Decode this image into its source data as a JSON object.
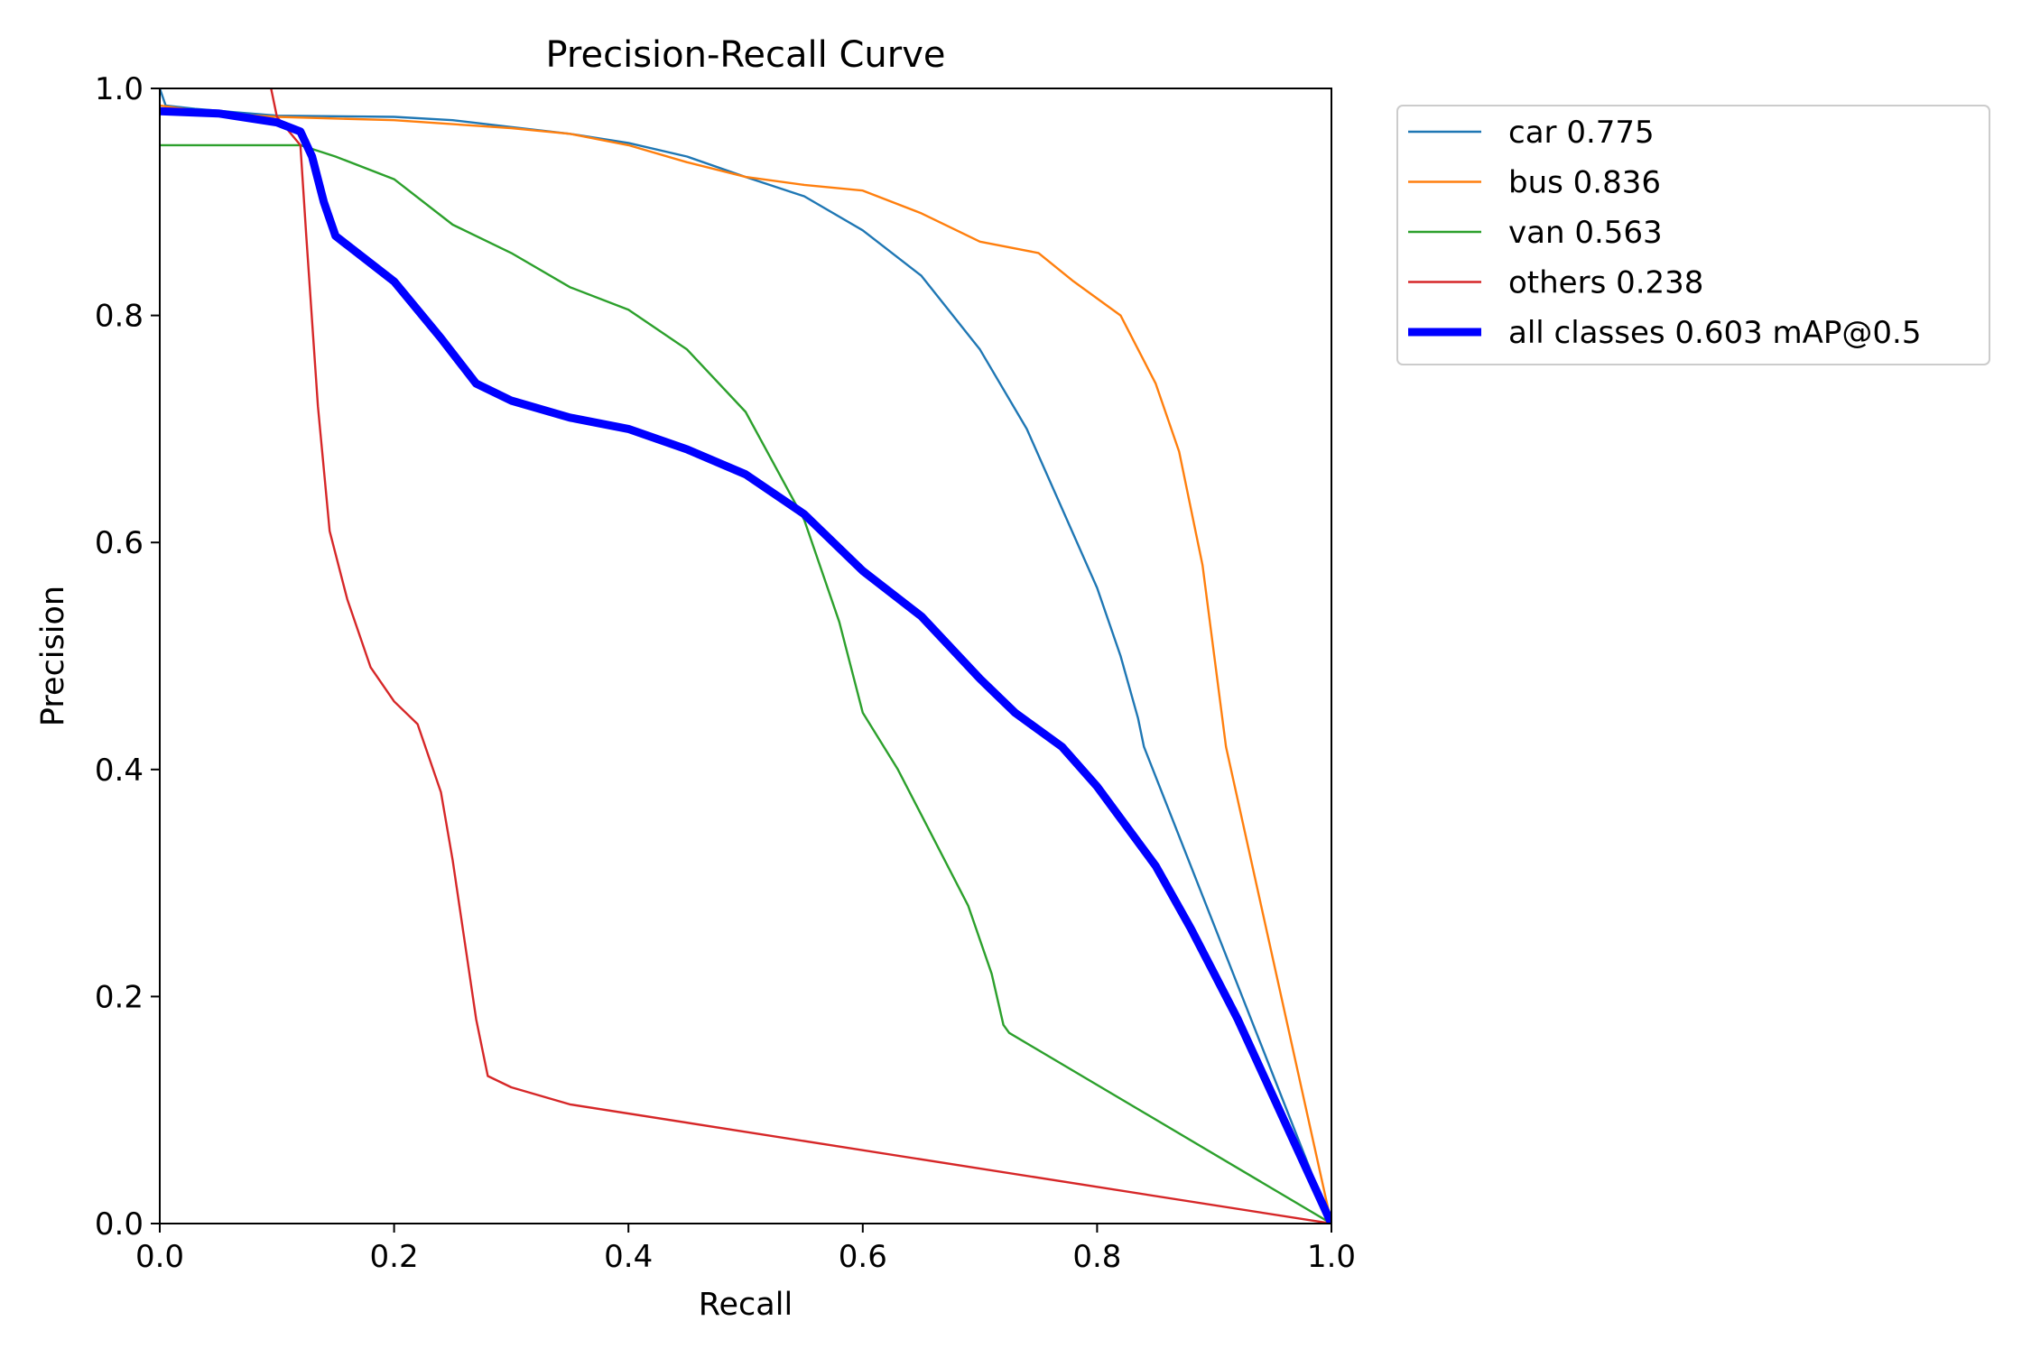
{
  "chart_data": {
    "type": "line",
    "title": "Precision-Recall Curve",
    "xlabel": "Recall",
    "ylabel": "Precision",
    "xlim": [
      0,
      1
    ],
    "ylim": [
      0,
      1
    ],
    "grid": false,
    "legend_position": "outside-top-right",
    "x_ticks": [
      "0.0",
      "0.2",
      "0.4",
      "0.6",
      "0.8",
      "1.0"
    ],
    "y_ticks": [
      "0.0",
      "0.2",
      "0.4",
      "0.6",
      "0.8",
      "1.0"
    ],
    "series": [
      {
        "name": "car",
        "label": "car 0.775",
        "ap": 0.775,
        "color": "#1f77b4",
        "width": "thin",
        "points": [
          [
            0,
            1.0
          ],
          [
            0.005,
            0.985
          ],
          [
            0.03,
            0.982
          ],
          [
            0.1,
            0.976
          ],
          [
            0.2,
            0.975
          ],
          [
            0.25,
            0.972
          ],
          [
            0.3,
            0.966
          ],
          [
            0.35,
            0.96
          ],
          [
            0.4,
            0.952
          ],
          [
            0.45,
            0.94
          ],
          [
            0.5,
            0.922
          ],
          [
            0.55,
            0.905
          ],
          [
            0.6,
            0.875
          ],
          [
            0.65,
            0.835
          ],
          [
            0.7,
            0.77
          ],
          [
            0.74,
            0.7
          ],
          [
            0.77,
            0.63
          ],
          [
            0.8,
            0.56
          ],
          [
            0.82,
            0.5
          ],
          [
            0.835,
            0.445
          ],
          [
            0.84,
            0.42
          ],
          [
            1.0,
            0.0
          ]
        ]
      },
      {
        "name": "bus",
        "label": "bus 0.836",
        "ap": 0.836,
        "color": "#ff7f0e",
        "width": "thin",
        "points": [
          [
            0,
            0.985
          ],
          [
            0.02,
            0.982
          ],
          [
            0.05,
            0.978
          ],
          [
            0.1,
            0.975
          ],
          [
            0.2,
            0.972
          ],
          [
            0.3,
            0.965
          ],
          [
            0.35,
            0.96
          ],
          [
            0.4,
            0.95
          ],
          [
            0.45,
            0.935
          ],
          [
            0.5,
            0.922
          ],
          [
            0.55,
            0.915
          ],
          [
            0.6,
            0.91
          ],
          [
            0.65,
            0.89
          ],
          [
            0.7,
            0.865
          ],
          [
            0.75,
            0.855
          ],
          [
            0.78,
            0.83
          ],
          [
            0.82,
            0.8
          ],
          [
            0.85,
            0.74
          ],
          [
            0.87,
            0.68
          ],
          [
            0.89,
            0.58
          ],
          [
            0.9,
            0.5
          ],
          [
            0.91,
            0.42
          ],
          [
            1.0,
            0.0
          ]
        ]
      },
      {
        "name": "van",
        "label": "van 0.563",
        "ap": 0.563,
        "color": "#2ca02c",
        "width": "thin",
        "points": [
          [
            0,
            0.95
          ],
          [
            0.12,
            0.95
          ],
          [
            0.15,
            0.94
          ],
          [
            0.2,
            0.92
          ],
          [
            0.25,
            0.88
          ],
          [
            0.3,
            0.855
          ],
          [
            0.35,
            0.825
          ],
          [
            0.4,
            0.805
          ],
          [
            0.45,
            0.77
          ],
          [
            0.5,
            0.715
          ],
          [
            0.55,
            0.62
          ],
          [
            0.58,
            0.53
          ],
          [
            0.6,
            0.45
          ],
          [
            0.63,
            0.4
          ],
          [
            0.66,
            0.34
          ],
          [
            0.69,
            0.28
          ],
          [
            0.71,
            0.22
          ],
          [
            0.72,
            0.175
          ],
          [
            0.725,
            0.168
          ],
          [
            1.0,
            0.0
          ]
        ]
      },
      {
        "name": "others",
        "label": "others 0.238",
        "ap": 0.238,
        "color": "#d62728",
        "width": "thin",
        "points": [
          [
            0.095,
            1.0
          ],
          [
            0.1,
            0.975
          ],
          [
            0.12,
            0.95
          ],
          [
            0.125,
            0.87
          ],
          [
            0.135,
            0.72
          ],
          [
            0.145,
            0.61
          ],
          [
            0.16,
            0.55
          ],
          [
            0.18,
            0.49
          ],
          [
            0.2,
            0.46
          ],
          [
            0.22,
            0.44
          ],
          [
            0.24,
            0.38
          ],
          [
            0.25,
            0.32
          ],
          [
            0.26,
            0.25
          ],
          [
            0.27,
            0.18
          ],
          [
            0.28,
            0.13
          ],
          [
            0.3,
            0.12
          ],
          [
            0.35,
            0.105
          ],
          [
            1.0,
            0.0
          ]
        ]
      },
      {
        "name": "all classes",
        "label": "all classes 0.603 mAP@0.5",
        "ap": 0.603,
        "color": "#0000ff",
        "width": "thick",
        "points": [
          [
            0,
            0.98
          ],
          [
            0.05,
            0.978
          ],
          [
            0.1,
            0.97
          ],
          [
            0.12,
            0.962
          ],
          [
            0.13,
            0.94
          ],
          [
            0.14,
            0.9
          ],
          [
            0.15,
            0.87
          ],
          [
            0.2,
            0.83
          ],
          [
            0.24,
            0.78
          ],
          [
            0.27,
            0.74
          ],
          [
            0.3,
            0.725
          ],
          [
            0.35,
            0.71
          ],
          [
            0.4,
            0.7
          ],
          [
            0.45,
            0.682
          ],
          [
            0.5,
            0.66
          ],
          [
            0.55,
            0.625
          ],
          [
            0.6,
            0.575
          ],
          [
            0.65,
            0.535
          ],
          [
            0.7,
            0.48
          ],
          [
            0.73,
            0.45
          ],
          [
            0.77,
            0.42
          ],
          [
            0.8,
            0.385
          ],
          [
            0.85,
            0.315
          ],
          [
            0.88,
            0.26
          ],
          [
            0.9,
            0.22
          ],
          [
            0.92,
            0.18
          ],
          [
            1.0,
            0.0
          ]
        ]
      }
    ]
  }
}
